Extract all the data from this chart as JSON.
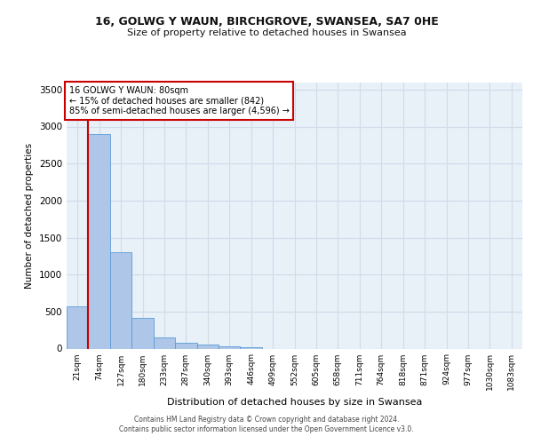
{
  "title_line1": "16, GOLWG Y WAUN, BIRCHGROVE, SWANSEA, SA7 0HE",
  "title_line2": "Size of property relative to detached houses in Swansea",
  "xlabel": "Distribution of detached houses by size in Swansea",
  "ylabel": "Number of detached properties",
  "bin_labels": [
    "21sqm",
    "74sqm",
    "127sqm",
    "180sqm",
    "233sqm",
    "287sqm",
    "340sqm",
    "393sqm",
    "446sqm",
    "499sqm",
    "552sqm",
    "605sqm",
    "658sqm",
    "711sqm",
    "764sqm",
    "818sqm",
    "871sqm",
    "924sqm",
    "977sqm",
    "1030sqm",
    "1083sqm"
  ],
  "bar_values": [
    570,
    2900,
    1300,
    410,
    155,
    80,
    55,
    35,
    20,
    0,
    0,
    0,
    0,
    0,
    0,
    0,
    0,
    0,
    0,
    0,
    0
  ],
  "bar_color": "#aec6e8",
  "bar_edge_color": "#5b9bd5",
  "ylim": [
    0,
    3600
  ],
  "yticks": [
    0,
    500,
    1000,
    1500,
    2000,
    2500,
    3000,
    3500
  ],
  "annotation_text": "16 GOLWG Y WAUN: 80sqm\n← 15% of detached houses are smaller (842)\n85% of semi-detached houses are larger (4,596) →",
  "annotation_box_color": "#ffffff",
  "annotation_box_edge": "#cc0000",
  "vline_color": "#cc0000",
  "vline_x": 0.5,
  "grid_color": "#d0dce8",
  "background_color": "#e8f0f8",
  "footer_line1": "Contains HM Land Registry data © Crown copyright and database right 2024.",
  "footer_line2": "Contains public sector information licensed under the Open Government Licence v3.0."
}
